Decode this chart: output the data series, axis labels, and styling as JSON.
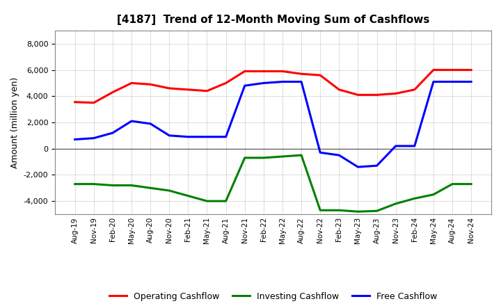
{
  "title": "[4187]  Trend of 12-Month Moving Sum of Cashflows",
  "ylabel": "Amount (million yen)",
  "ylim": [
    -5000,
    9000
  ],
  "yticks": [
    -4000,
    -2000,
    0,
    2000,
    4000,
    6000,
    8000
  ],
  "x_labels": [
    "Aug-19",
    "Nov-19",
    "Feb-20",
    "May-20",
    "Aug-20",
    "Nov-20",
    "Feb-21",
    "May-21",
    "Aug-21",
    "Nov-21",
    "Feb-22",
    "May-22",
    "Aug-22",
    "Nov-22",
    "Feb-23",
    "May-23",
    "Aug-23",
    "Nov-23",
    "Feb-24",
    "May-24",
    "Aug-24",
    "Nov-24"
  ],
  "operating": [
    3550,
    3500,
    4300,
    5000,
    4900,
    4600,
    4500,
    4400,
    5000,
    5900,
    5900,
    5900,
    5700,
    5600,
    4500,
    4100,
    4100,
    4200,
    4500,
    6000,
    6000,
    6000
  ],
  "investing": [
    -2700,
    -2700,
    -2800,
    -2800,
    -3000,
    -3200,
    -3600,
    -4000,
    -4000,
    -700,
    -700,
    -600,
    -500,
    -4700,
    -4700,
    -4800,
    -4750,
    -4200,
    -3800,
    -3500,
    -2700,
    -2700
  ],
  "free": [
    700,
    800,
    1200,
    2100,
    1900,
    1000,
    900,
    900,
    900,
    4800,
    5000,
    5100,
    5100,
    -300,
    -500,
    -1400,
    -1300,
    200,
    200,
    5100,
    5100,
    5100
  ],
  "operating_color": "#ff0000",
  "investing_color": "#008000",
  "free_color": "#0000ff",
  "bg_color": "#ffffff",
  "grid_color": "#999999",
  "zero_line_color": "#666666"
}
